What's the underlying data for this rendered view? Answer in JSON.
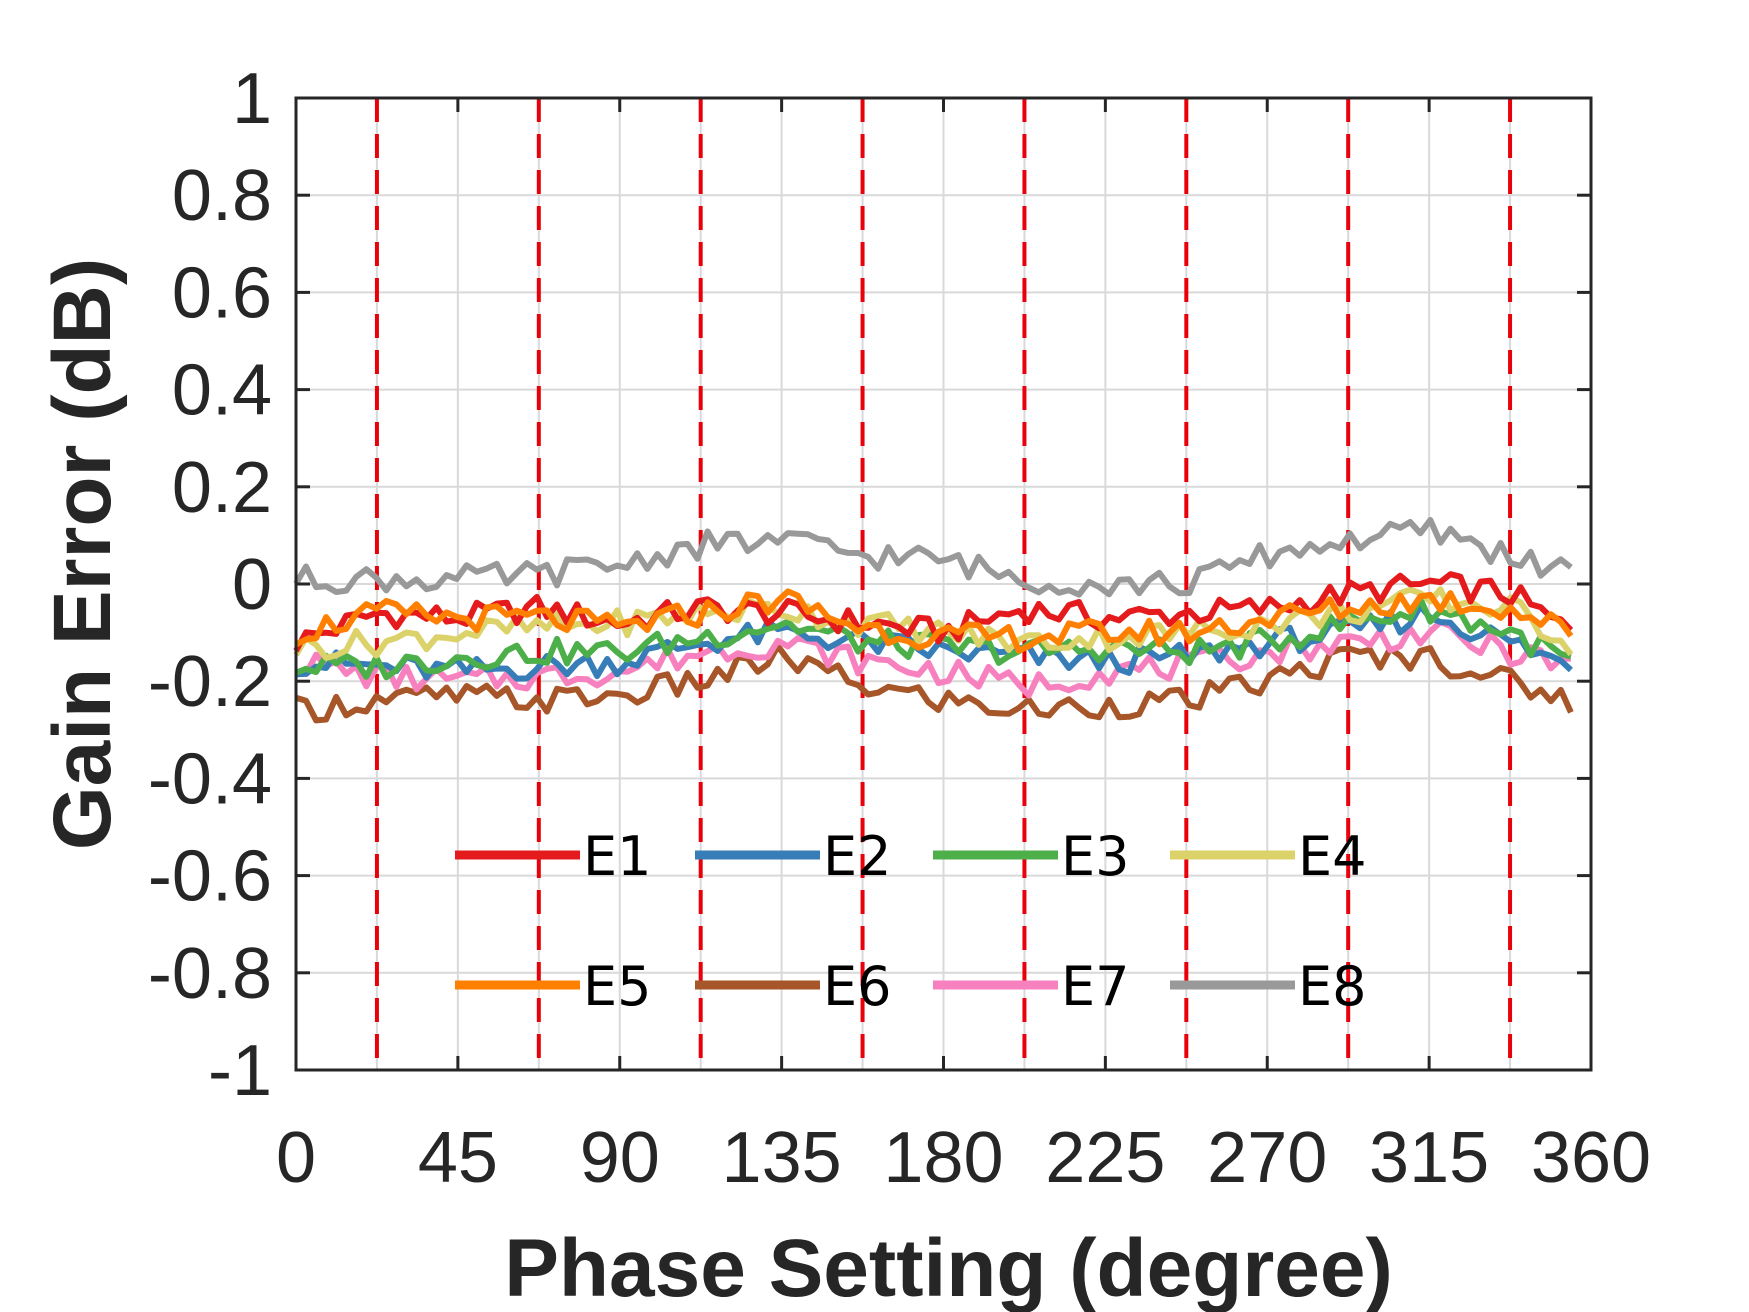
{
  "chart_data": {
    "type": "line",
    "title": "",
    "xlabel": "Phase Setting (degree)",
    "ylabel": "Gain Error (dB)",
    "xlim": [
      0,
      360
    ],
    "ylim": [
      -1,
      1
    ],
    "x_ticks": [
      0,
      45,
      90,
      135,
      180,
      225,
      270,
      315,
      360
    ],
    "x_tick_labels": [
      "0",
      "45",
      "90",
      "135",
      "180",
      "225",
      "270",
      "315",
      "360"
    ],
    "y_ticks": [
      1,
      0.8,
      0.6,
      0.4,
      0.2,
      0,
      -0.2,
      -0.4,
      -0.6,
      -0.8,
      -1
    ],
    "y_tick_labels": [
      "1",
      "0.8",
      "0.6",
      "0.4",
      "0.2",
      "0",
      "-0.2",
      "-0.4",
      "-0.6",
      "-0.8",
      "-1"
    ],
    "grid": true,
    "reference_lines": {
      "orientation": "vertical",
      "style": "dashed",
      "color": "#e8000b",
      "x": [
        22.5,
        67.5,
        112.5,
        157.5,
        202.5,
        247.5,
        292.5,
        337.5
      ]
    },
    "legend": {
      "placement": "bottom-center",
      "columns": 4
    },
    "x": [
      0,
      22.5,
      45,
      67.5,
      90,
      112.5,
      135,
      157.5,
      180,
      202.5,
      225,
      247.5,
      270,
      292.5,
      315,
      337.5,
      354.4
    ],
    "series": [
      {
        "name": "E1",
        "color": "#e41a1c",
        "values": [
          -0.12,
          -0.06,
          -0.07,
          -0.05,
          -0.08,
          -0.05,
          -0.06,
          -0.08,
          -0.1,
          -0.05,
          -0.07,
          -0.06,
          -0.05,
          -0.02,
          0.0,
          -0.02,
          -0.1
        ]
      },
      {
        "name": "E2",
        "color": "#377eb8",
        "values": [
          -0.16,
          -0.17,
          -0.18,
          -0.17,
          -0.16,
          -0.12,
          -0.1,
          -0.12,
          -0.14,
          -0.15,
          -0.16,
          -0.15,
          -0.12,
          -0.1,
          -0.06,
          -0.12,
          -0.17
        ]
      },
      {
        "name": "E3",
        "color": "#4daf4a",
        "values": [
          -0.17,
          -0.17,
          -0.15,
          -0.14,
          -0.14,
          -0.11,
          -0.08,
          -0.12,
          -0.13,
          -0.14,
          -0.13,
          -0.14,
          -0.12,
          -0.08,
          -0.05,
          -0.1,
          -0.16
        ]
      },
      {
        "name": "E4",
        "color": "#dcd26a",
        "values": [
          -0.13,
          -0.12,
          -0.1,
          -0.09,
          -0.08,
          -0.06,
          -0.05,
          -0.08,
          -0.1,
          -0.12,
          -0.11,
          -0.1,
          -0.08,
          -0.06,
          -0.03,
          -0.05,
          -0.12
        ]
      },
      {
        "name": "E5",
        "color": "#ff7f00",
        "values": [
          -0.1,
          -0.06,
          -0.07,
          -0.07,
          -0.09,
          -0.06,
          -0.03,
          -0.09,
          -0.11,
          -0.11,
          -0.1,
          -0.1,
          -0.07,
          -0.05,
          -0.03,
          -0.05,
          -0.1
        ]
      },
      {
        "name": "E6",
        "color": "#a65628",
        "values": [
          -0.26,
          -0.24,
          -0.23,
          -0.24,
          -0.23,
          -0.2,
          -0.15,
          -0.21,
          -0.24,
          -0.26,
          -0.25,
          -0.24,
          -0.2,
          -0.15,
          -0.15,
          -0.2,
          -0.24
        ]
      },
      {
        "name": "E7",
        "color": "#f781bf",
        "values": [
          -0.16,
          -0.19,
          -0.2,
          -0.19,
          -0.18,
          -0.14,
          -0.12,
          -0.16,
          -0.18,
          -0.21,
          -0.18,
          -0.17,
          -0.14,
          -0.12,
          -0.1,
          -0.14,
          -0.17
        ]
      },
      {
        "name": "E8",
        "color": "#999999",
        "values": [
          0.01,
          0.01,
          0.01,
          0.02,
          0.04,
          0.08,
          0.09,
          0.06,
          0.05,
          0.01,
          0.0,
          0.0,
          0.06,
          0.09,
          0.11,
          0.06,
          0.02
        ]
      }
    ]
  }
}
